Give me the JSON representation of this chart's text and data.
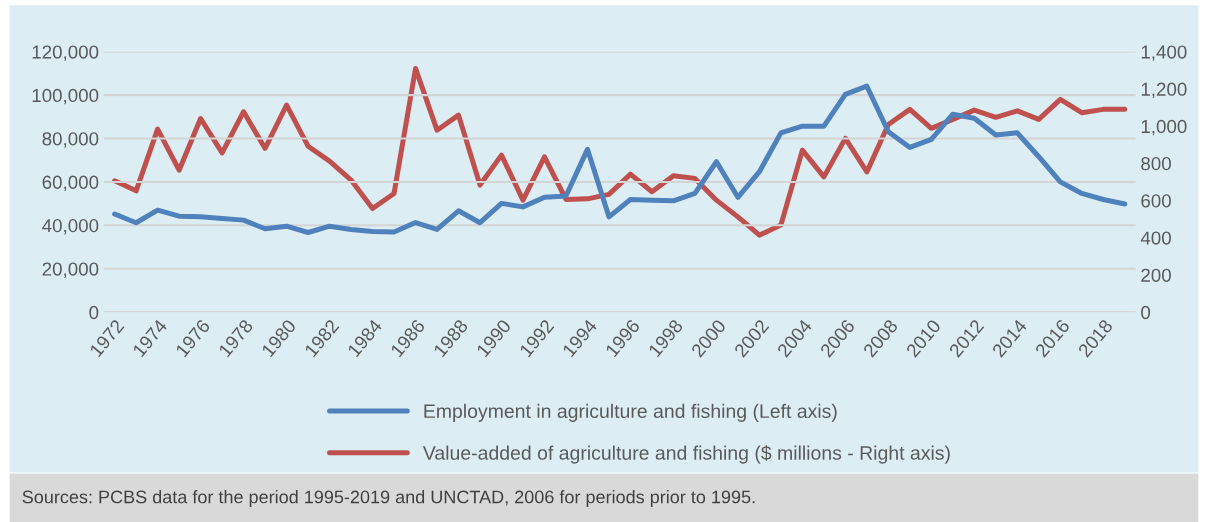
{
  "chart_data": {
    "type": "line",
    "categories": [
      "1972",
      null,
      "1974",
      null,
      "1976",
      null,
      "1978",
      null,
      "1980",
      null,
      "1982",
      null,
      "1984",
      null,
      "1986",
      null,
      "1988",
      null,
      "1990",
      null,
      "1992",
      null,
      "1994",
      null,
      "1996",
      null,
      "1998",
      null,
      "2000",
      null,
      "2002",
      null,
      "2004",
      null,
      "2006",
      null,
      "2008",
      null,
      "2010",
      null,
      "2012",
      null,
      "2014",
      null,
      "2016",
      null,
      "2018",
      null
    ],
    "series": [
      {
        "name": "Employment in agriculture and fishing (Left axis)",
        "color": "#4f81bd",
        "values": [
          45200,
          41200,
          47000,
          44200,
          43900,
          43200,
          42400,
          38400,
          39600,
          36700,
          39600,
          38100,
          37200,
          36900,
          41300,
          38100,
          46700,
          41200,
          50100,
          48500,
          52900,
          53500,
          75000,
          43900,
          51900,
          51600,
          51300,
          54700,
          69300,
          52900,
          64700,
          82600,
          85700,
          85700,
          100300,
          104100,
          83100,
          75900,
          79600,
          91200,
          89300,
          81600,
          82600,
          71600,
          60000,
          54700,
          51900,
          49800
        ]
      },
      {
        "name": "Value-added of agriculture and fishing ($ millions - Right axis)",
        "color": "#c0504d",
        "axis": "y2",
        "values": [
          706,
          652,
          984,
          763,
          1041,
          856,
          1077,
          880,
          1113,
          892,
          812,
          710,
          557,
          638,
          1310,
          978,
          1059,
          683,
          844,
          602,
          835,
          606,
          609,
          633,
          742,
          647,
          733,
          719,
          602,
          512,
          414,
          468,
          871,
          727,
          934,
          754,
          1009,
          1090,
          988,
          1036,
          1086,
          1047,
          1082,
          1036,
          1144,
          1072,
          1090,
          1090
        ]
      }
    ],
    "ylim": [
      0,
      120000
    ],
    "yticks": [
      {
        "value": 0,
        "label": "0"
      },
      {
        "value": 20000,
        "label": "20,000"
      },
      {
        "value": 40000,
        "label": "40,000"
      },
      {
        "value": 60000,
        "label": "60,000"
      },
      {
        "value": 80000,
        "label": "80,000"
      },
      {
        "value": 100000,
        "label": "100,000"
      },
      {
        "value": 120000,
        "label": "120,000"
      }
    ],
    "y2lim": [
      0,
      1400
    ],
    "y2ticks": [
      {
        "value": 0,
        "label": "0"
      },
      {
        "value": 200,
        "label": "200"
      },
      {
        "value": 400,
        "label": "400"
      },
      {
        "value": 600,
        "label": "600"
      },
      {
        "value": 800,
        "label": "800"
      },
      {
        "value": 1000,
        "label": "1,000"
      },
      {
        "value": 1200,
        "label": "1,200"
      },
      {
        "value": 1400,
        "label": "1,400"
      }
    ],
    "grid": "y",
    "legend": "bottom",
    "marker": "none",
    "line_style": "solid",
    "annotations": [
      "Sources: PCBS data for the period 1995-2019 and UNCTAD, 2006 for periods prior to 1995."
    ]
  }
}
